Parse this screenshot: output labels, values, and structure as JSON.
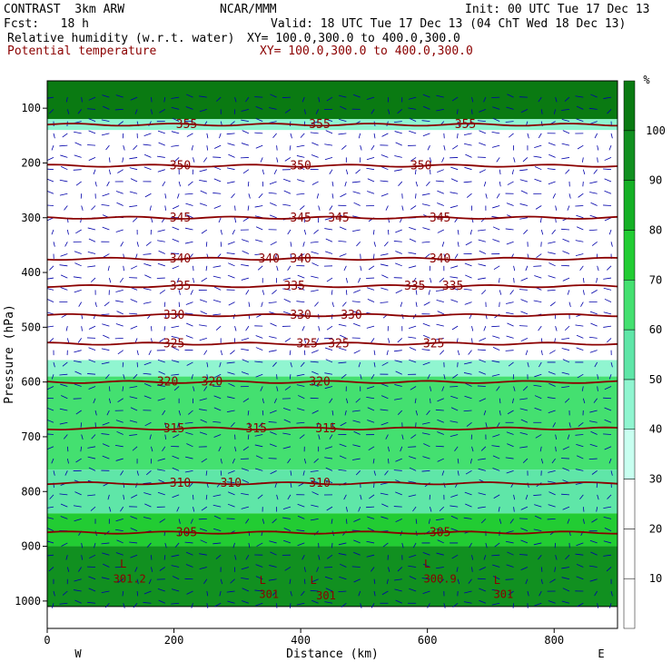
{
  "header": {
    "experiment": "CONTRAST  3km ARW",
    "org": "NCAR/MMM",
    "init": "Init: 00 UTC Tue 17 Dec 13",
    "fcst": "Fcst:   18 h",
    "valid": "Valid: 18 UTC Tue 17 Dec 13 (04 ChT Wed 18 Dec 13)",
    "field1_name": "Relative humidity (w.r.t. water)",
    "field1_xy": "XY= 100.0,300.0 to 400.0,300.0",
    "field2_name": "Potential temperature",
    "field2_xy": "XY= 100.0,300.0 to 400.0,300.0"
  },
  "colors": {
    "theta_line": "#8b0000",
    "theta_label": "#8b0000",
    "wind_vector": "#0000aa",
    "rh_fill": [
      "#ffffff",
      "#ffffff",
      "#ffffff",
      "#c8fff0",
      "#90f5d0",
      "#5fe6a8",
      "#44e070",
      "#22cc33",
      "#15b025",
      "#119020",
      "#0a7a12",
      "#800000"
    ]
  },
  "chart_data": {
    "type": "heatmap",
    "xlabel": "Distance (km)",
    "ylabel": "Pressure (hPa)",
    "x_ticks": [
      0,
      200,
      400,
      600,
      800
    ],
    "y_ticks": [
      100,
      200,
      300,
      400,
      500,
      600,
      700,
      800,
      900,
      1000
    ],
    "xlim": [
      0,
      900
    ],
    "ylim": [
      1050,
      50
    ],
    "x_end_labels": {
      "left": "W",
      "right": "E"
    },
    "colorbar": {
      "unit": "%",
      "ticks": [
        10,
        20,
        30,
        40,
        50,
        60,
        70,
        80,
        90,
        100
      ],
      "levels": [
        0,
        10,
        20,
        30,
        40,
        50,
        60,
        70,
        80,
        90,
        100,
        110
      ]
    },
    "isentropes": [
      {
        "theta": 355,
        "pressure": 130,
        "labels_x": [
          220,
          430,
          660
        ]
      },
      {
        "theta": 350,
        "pressure": 205,
        "labels_x": [
          210,
          400,
          590
        ]
      },
      {
        "theta": 345,
        "pressure": 300,
        "labels_x": [
          210,
          400,
          460,
          620
        ]
      },
      {
        "theta": 340,
        "pressure": 375,
        "labels_x": [
          210,
          350,
          400,
          620
        ]
      },
      {
        "theta": 335,
        "pressure": 425,
        "labels_x": [
          210,
          390,
          580,
          640
        ]
      },
      {
        "theta": 330,
        "pressure": 478,
        "labels_x": [
          200,
          400,
          480
        ]
      },
      {
        "theta": 325,
        "pressure": 530,
        "labels_x": [
          200,
          410,
          460,
          610
        ]
      },
      {
        "theta": 320,
        "pressure": 600,
        "labels_x": [
          190,
          260,
          430
        ]
      },
      {
        "theta": 315,
        "pressure": 685,
        "labels_x": [
          200,
          330,
          440
        ]
      },
      {
        "theta": 310,
        "pressure": 785,
        "labels_x": [
          210,
          290,
          430
        ]
      },
      {
        "theta": 305,
        "pressure": 875,
        "labels_x": [
          220,
          620
        ]
      }
    ],
    "surface_labels": [
      {
        "text": "301.2",
        "x": 130,
        "p": 960
      },
      {
        "text": "301",
        "x": 350,
        "p": 988
      },
      {
        "text": "301",
        "x": 440,
        "p": 990
      },
      {
        "text": "300.9",
        "x": 620,
        "p": 960
      },
      {
        "text": "301",
        "x": 720,
        "p": 988
      }
    ],
    "low_markers": [
      {
        "text": "L",
        "x": 120,
        "p": 932
      },
      {
        "text": "L",
        "x": 340,
        "p": 962
      },
      {
        "text": "L",
        "x": 420,
        "p": 962
      },
      {
        "text": "L",
        "x": 600,
        "p": 932
      },
      {
        "text": "L",
        "x": 710,
        "p": 962
      }
    ],
    "rh_layers": [
      {
        "p_top": 50,
        "p_bot": 120,
        "rh": 105
      },
      {
        "p_top": 120,
        "p_bot": 140,
        "rh": 45
      },
      {
        "p_top": 140,
        "p_bot": 560,
        "rh": 15
      },
      {
        "p_top": 560,
        "p_bot": 590,
        "rh": 45
      },
      {
        "p_top": 590,
        "p_bot": 760,
        "rh": 65
      },
      {
        "p_top": 760,
        "p_bot": 840,
        "rh": 55
      },
      {
        "p_top": 840,
        "p_bot": 900,
        "rh": 75
      },
      {
        "p_top": 900,
        "p_bot": 1010,
        "rh": 95
      }
    ]
  }
}
